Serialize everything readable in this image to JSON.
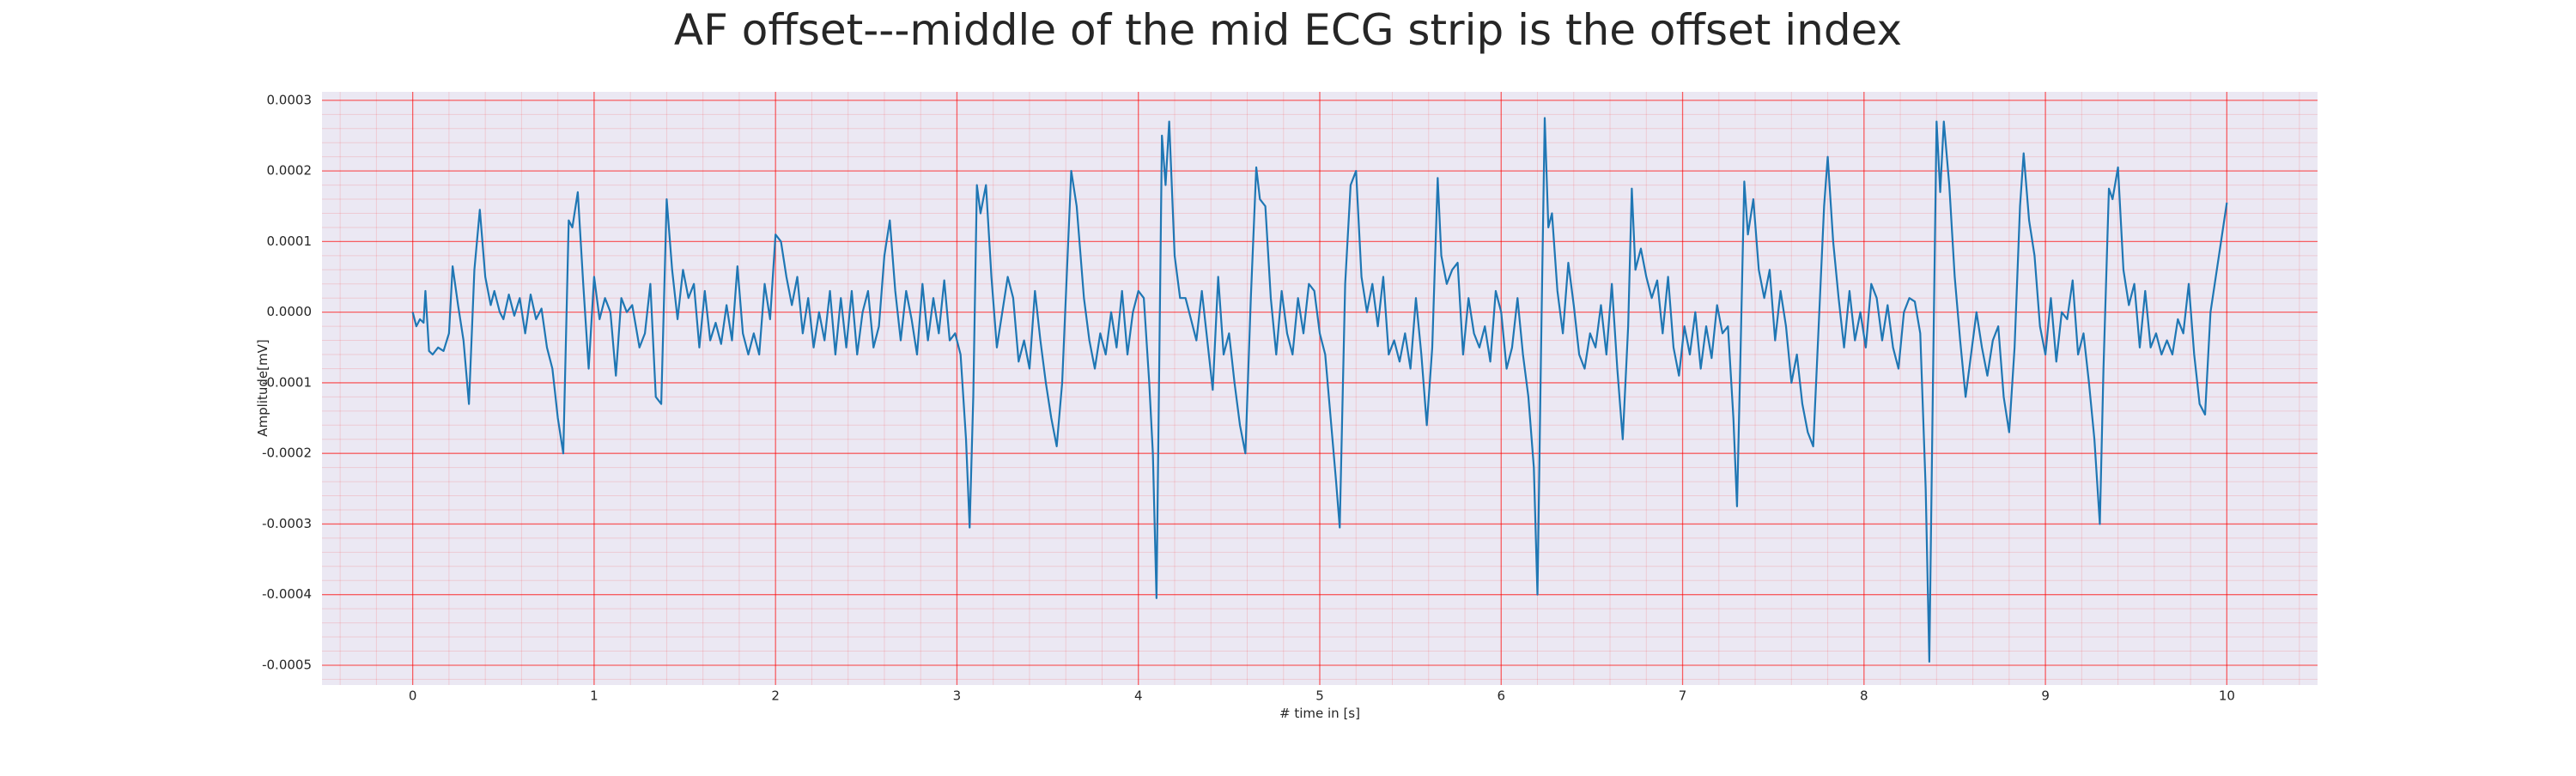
{
  "chart_data": {
    "type": "line",
    "title": "AF offset---middle of the mid ECG strip is the offset index",
    "x_label": "# time in [s]",
    "y_label": "Amplitude[mV]",
    "color": "#1f77b4",
    "grid": true,
    "minor_grid": true,
    "xlim": [
      -0.5,
      10.5
    ],
    "ylim": [
      -0.000528,
      0.000312
    ],
    "xticks": [
      0,
      1,
      2,
      3,
      4,
      5,
      6,
      7,
      8,
      9,
      10
    ],
    "yticks": [
      -0.0005,
      -0.0004,
      -0.0003,
      -0.0002,
      -0.0001,
      {
        "value": 0,
        "label": "0.0000"
      },
      0.0001,
      0.0002,
      0.0003
    ],
    "x": [
      0.0,
      0.02,
      0.04,
      0.06,
      0.07,
      0.09,
      0.11,
      0.14,
      0.17,
      0.2,
      0.22,
      0.25,
      0.28,
      0.31,
      0.34,
      0.37,
      0.4,
      0.43,
      0.45,
      0.48,
      0.5,
      0.53,
      0.56,
      0.59,
      0.62,
      0.65,
      0.68,
      0.71,
      0.74,
      0.77,
      0.8,
      0.83,
      0.86,
      0.88,
      0.91,
      0.94,
      0.97,
      1.0,
      1.03,
      1.06,
      1.09,
      1.12,
      1.15,
      1.18,
      1.21,
      1.25,
      1.28,
      1.31,
      1.34,
      1.37,
      1.4,
      1.43,
      1.46,
      1.49,
      1.52,
      1.55,
      1.58,
      1.61,
      1.64,
      1.67,
      1.7,
      1.73,
      1.76,
      1.79,
      1.82,
      1.85,
      1.88,
      1.91,
      1.94,
      1.97,
      2.0,
      2.03,
      2.06,
      2.09,
      2.12,
      2.15,
      2.18,
      2.21,
      2.24,
      2.27,
      2.3,
      2.33,
      2.36,
      2.39,
      2.42,
      2.45,
      2.48,
      2.51,
      2.54,
      2.57,
      2.6,
      2.63,
      2.66,
      2.69,
      2.72,
      2.75,
      2.78,
      2.81,
      2.84,
      2.87,
      2.9,
      2.93,
      2.96,
      2.99,
      3.02,
      3.05,
      3.07,
      3.09,
      3.11,
      3.13,
      3.16,
      3.19,
      3.22,
      3.25,
      3.28,
      3.31,
      3.34,
      3.37,
      3.4,
      3.43,
      3.46,
      3.49,
      3.52,
      3.55,
      3.58,
      3.61,
      3.63,
      3.66,
      3.7,
      3.73,
      3.76,
      3.79,
      3.82,
      3.85,
      3.88,
      3.91,
      3.94,
      3.97,
      4.0,
      4.03,
      4.06,
      4.08,
      4.1,
      4.13,
      4.15,
      4.17,
      4.2,
      4.23,
      4.26,
      4.29,
      4.32,
      4.35,
      4.38,
      4.41,
      4.44,
      4.47,
      4.5,
      4.53,
      4.56,
      4.59,
      4.62,
      4.65,
      4.67,
      4.7,
      4.73,
      4.76,
      4.79,
      4.82,
      4.85,
      4.88,
      4.91,
      4.94,
      4.97,
      5.0,
      5.03,
      5.06,
      5.09,
      5.11,
      5.14,
      5.17,
      5.2,
      5.23,
      5.26,
      5.29,
      5.32,
      5.35,
      5.38,
      5.41,
      5.44,
      5.47,
      5.5,
      5.53,
      5.56,
      5.59,
      5.62,
      5.65,
      5.67,
      5.7,
      5.73,
      5.76,
      5.79,
      5.82,
      5.85,
      5.88,
      5.91,
      5.94,
      5.97,
      6.0,
      6.03,
      6.06,
      6.09,
      6.12,
      6.15,
      6.18,
      6.2,
      6.22,
      6.24,
      6.26,
      6.28,
      6.31,
      6.34,
      6.37,
      6.4,
      6.43,
      6.46,
      6.49,
      6.52,
      6.55,
      6.58,
      6.61,
      6.64,
      6.67,
      6.7,
      6.72,
      6.74,
      6.77,
      6.8,
      6.83,
      6.86,
      6.89,
      6.92,
      6.95,
      6.98,
      7.01,
      7.04,
      7.07,
      7.1,
      7.13,
      7.16,
      7.19,
      7.22,
      7.25,
      7.28,
      7.3,
      7.32,
      7.34,
      7.36,
      7.39,
      7.42,
      7.45,
      7.48,
      7.51,
      7.54,
      7.57,
      7.6,
      7.63,
      7.66,
      7.69,
      7.72,
      7.75,
      7.78,
      7.8,
      7.83,
      7.86,
      7.89,
      7.92,
      7.95,
      7.98,
      8.01,
      8.04,
      8.07,
      8.1,
      8.13,
      8.16,
      8.19,
      8.22,
      8.25,
      8.28,
      8.31,
      8.34,
      8.36,
      8.38,
      8.4,
      8.42,
      8.44,
      8.47,
      8.5,
      8.53,
      8.56,
      8.59,
      8.62,
      8.65,
      8.68,
      8.71,
      8.74,
      8.77,
      8.8,
      8.83,
      8.86,
      8.88,
      8.91,
      8.94,
      8.97,
      9.0,
      9.03,
      9.06,
      9.09,
      9.12,
      9.15,
      9.18,
      9.21,
      9.24,
      9.27,
      9.3,
      9.32,
      9.35,
      9.37,
      9.4,
      9.43,
      9.46,
      9.49,
      9.52,
      9.55,
      9.58,
      9.61,
      9.64,
      9.67,
      9.7,
      9.73,
      9.76,
      9.79,
      9.82,
      9.85,
      9.88,
      9.91,
      10.0
    ],
    "values": [
      0,
      -2e-05,
      -1e-05,
      -1.5e-05,
      3e-05,
      -5.5e-05,
      -6e-05,
      -5e-05,
      -5.5e-05,
      -3e-05,
      6.5e-05,
      1e-05,
      -4e-05,
      -0.00013,
      6e-05,
      0.000145,
      5e-05,
      1e-05,
      3e-05,
      0,
      -1e-05,
      2.5e-05,
      -5e-06,
      2e-05,
      -3e-05,
      2.5e-05,
      -1e-05,
      5e-06,
      -5e-05,
      -8e-05,
      -0.00015,
      -0.0002,
      0.00013,
      0.00012,
      0.00017,
      4e-05,
      -8e-05,
      5e-05,
      -1e-05,
      2e-05,
      0,
      -9e-05,
      2e-05,
      0,
      1e-05,
      -5e-05,
      -3e-05,
      4e-05,
      -0.00012,
      -0.00013,
      0.00016,
      6e-05,
      -1e-05,
      6e-05,
      2e-05,
      4e-05,
      -5e-05,
      3e-05,
      -4e-05,
      -1.5e-05,
      -4.5e-05,
      1e-05,
      -4e-05,
      6.5e-05,
      -3e-05,
      -6e-05,
      -3e-05,
      -6e-05,
      4e-05,
      -1e-05,
      0.00011,
      0.0001,
      5e-05,
      1e-05,
      5e-05,
      -3e-05,
      2e-05,
      -5e-05,
      0,
      -4e-05,
      3e-05,
      -6e-05,
      2e-05,
      -5e-05,
      3e-05,
      -6e-05,
      0,
      3e-05,
      -5e-05,
      -2e-05,
      8e-05,
      0.00013,
      3e-05,
      -4e-05,
      3e-05,
      -1e-05,
      -6e-05,
      4e-05,
      -4e-05,
      2e-05,
      -3e-05,
      4.5e-05,
      -4e-05,
      -3e-05,
      -6e-05,
      -0.00018,
      -0.000305,
      -0.00012,
      0.00018,
      0.00014,
      0.00018,
      5e-05,
      -5e-05,
      0,
      5e-05,
      2e-05,
      -7e-05,
      -4e-05,
      -8e-05,
      3e-05,
      -4e-05,
      -0.0001,
      -0.00015,
      -0.00019,
      -0.0001,
      8e-05,
      0.0002,
      0.00015,
      2e-05,
      -4e-05,
      -8e-05,
      -3e-05,
      -6e-05,
      0,
      -5e-05,
      3e-05,
      -6e-05,
      0,
      3e-05,
      2e-05,
      -0.0001,
      -0.0002,
      -0.000405,
      0.00025,
      0.00018,
      0.00027,
      8e-05,
      2e-05,
      2e-05,
      -1e-05,
      -4e-05,
      3e-05,
      -4e-05,
      -0.00011,
      5e-05,
      -6e-05,
      -3e-05,
      -0.0001,
      -0.00016,
      -0.0002,
      2e-05,
      0.000205,
      0.00016,
      0.00015,
      2e-05,
      -6e-05,
      3e-05,
      -3e-05,
      -6e-05,
      2e-05,
      -3e-05,
      4e-05,
      3e-05,
      -3e-05,
      -6e-05,
      -0.00015,
      -0.00024,
      -0.000305,
      4e-05,
      0.00018,
      0.0002,
      5e-05,
      0,
      4e-05,
      -2e-05,
      5e-05,
      -6e-05,
      -4e-05,
      -7e-05,
      -3e-05,
      -8e-05,
      2e-05,
      -6e-05,
      -0.00016,
      -5e-05,
      0.00019,
      8e-05,
      4e-05,
      6e-05,
      7e-05,
      -6e-05,
      2e-05,
      -3e-05,
      -5e-05,
      -2e-05,
      -7e-05,
      3e-05,
      0,
      -8e-05,
      -5e-05,
      2e-05,
      -6e-05,
      -0.00012,
      -0.00022,
      -0.0004,
      -5e-05,
      0.000275,
      0.00012,
      0.00014,
      3e-05,
      -3e-05,
      7e-05,
      1e-05,
      -6e-05,
      -8e-05,
      -3e-05,
      -5e-05,
      1e-05,
      -6e-05,
      4e-05,
      -8e-05,
      -0.00018,
      -2e-05,
      0.000175,
      6e-05,
      9e-05,
      5e-05,
      2e-05,
      4.5e-05,
      -3e-05,
      5e-05,
      -5e-05,
      -9e-05,
      -2e-05,
      -6e-05,
      0,
      -8e-05,
      -2e-05,
      -6.5e-05,
      1e-05,
      -3e-05,
      -2e-05,
      -0.00015,
      -0.000275,
      -5e-05,
      0.000185,
      0.00011,
      0.00016,
      6e-05,
      2e-05,
      6e-05,
      -4e-05,
      3e-05,
      -2e-05,
      -0.0001,
      -6e-05,
      -0.00013,
      -0.00017,
      -0.00019,
      -2e-05,
      0.00015,
      0.00022,
      0.0001,
      2e-05,
      -5e-05,
      3e-05,
      -4e-05,
      0,
      -5e-05,
      4e-05,
      2e-05,
      -4e-05,
      1e-05,
      -5e-05,
      -8e-05,
      0,
      2e-05,
      1.5e-05,
      -3e-05,
      -0.00025,
      -0.000495,
      -0.0001,
      0.00027,
      0.00017,
      0.00027,
      0.00018,
      5e-05,
      -4e-05,
      -0.00012,
      -6e-05,
      0,
      -5e-05,
      -9e-05,
      -4e-05,
      -2e-05,
      -0.00012,
      -0.00017,
      -5e-05,
      0.00015,
      0.000225,
      0.00013,
      8e-05,
      -2e-05,
      -6e-05,
      2e-05,
      -7e-05,
      0,
      -1e-05,
      4.5e-05,
      -6e-05,
      -3e-05,
      -0.0001,
      -0.00018,
      -0.0003,
      -8e-05,
      0.000175,
      0.00016,
      0.000205,
      6e-05,
      1e-05,
      4e-05,
      -5e-05,
      3e-05,
      -5e-05,
      -3e-05,
      -6e-05,
      -4e-05,
      -6e-05,
      -1e-05,
      -3e-05,
      4e-05,
      -6e-05,
      -0.00013,
      -0.000145,
      0,
      0.000155
    ]
  }
}
